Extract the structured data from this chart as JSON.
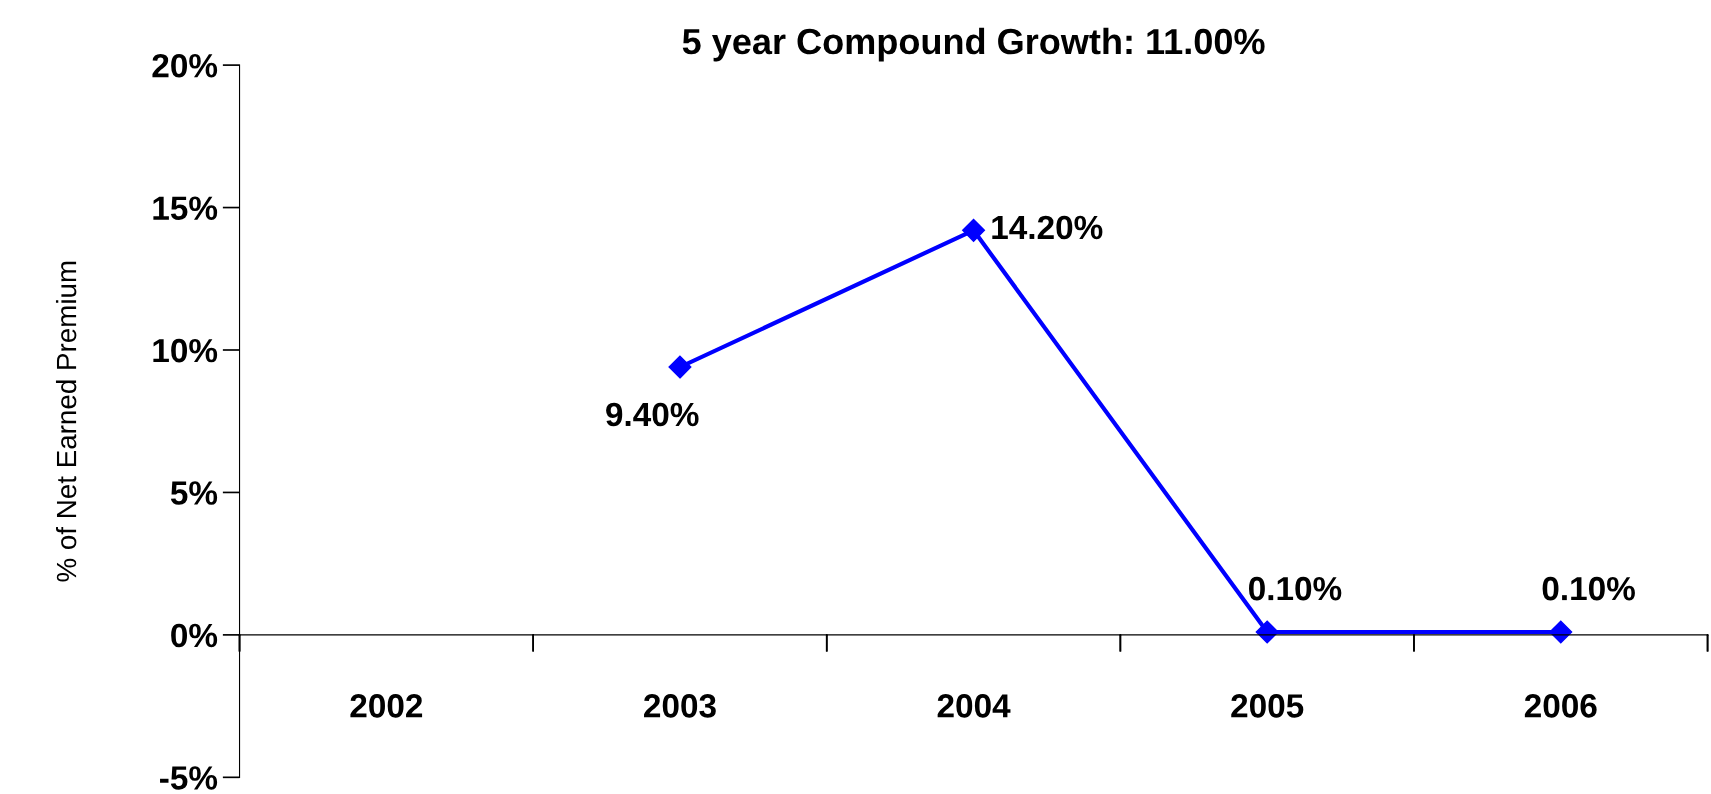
{
  "chart_data": {
    "type": "line",
    "title": "5 year Compound Growth: 11.00%",
    "ylabel": "% of Net Earned Premium",
    "categories": [
      "2002",
      "2003",
      "2004",
      "2005",
      "2006"
    ],
    "series": [
      {
        "color": "#0000ff",
        "values": [
          null,
          9.4,
          14.2,
          0.1,
          0.1
        ],
        "value_labels": [
          null,
          "9.40%",
          "14.20%",
          "0.10%",
          "0.10%"
        ]
      }
    ],
    "ylim": [
      -5,
      20
    ],
    "yticks": [
      {
        "value": -5,
        "label": "-5%"
      },
      {
        "value": 0,
        "label": "0%"
      },
      {
        "value": 5,
        "label": "5%"
      },
      {
        "value": 10,
        "label": "10%"
      },
      {
        "value": 15,
        "label": "15%"
      },
      {
        "value": 20,
        "label": "20%"
      }
    ],
    "marker": "diamond",
    "line_style": "solid",
    "grid": false,
    "legend": false
  }
}
